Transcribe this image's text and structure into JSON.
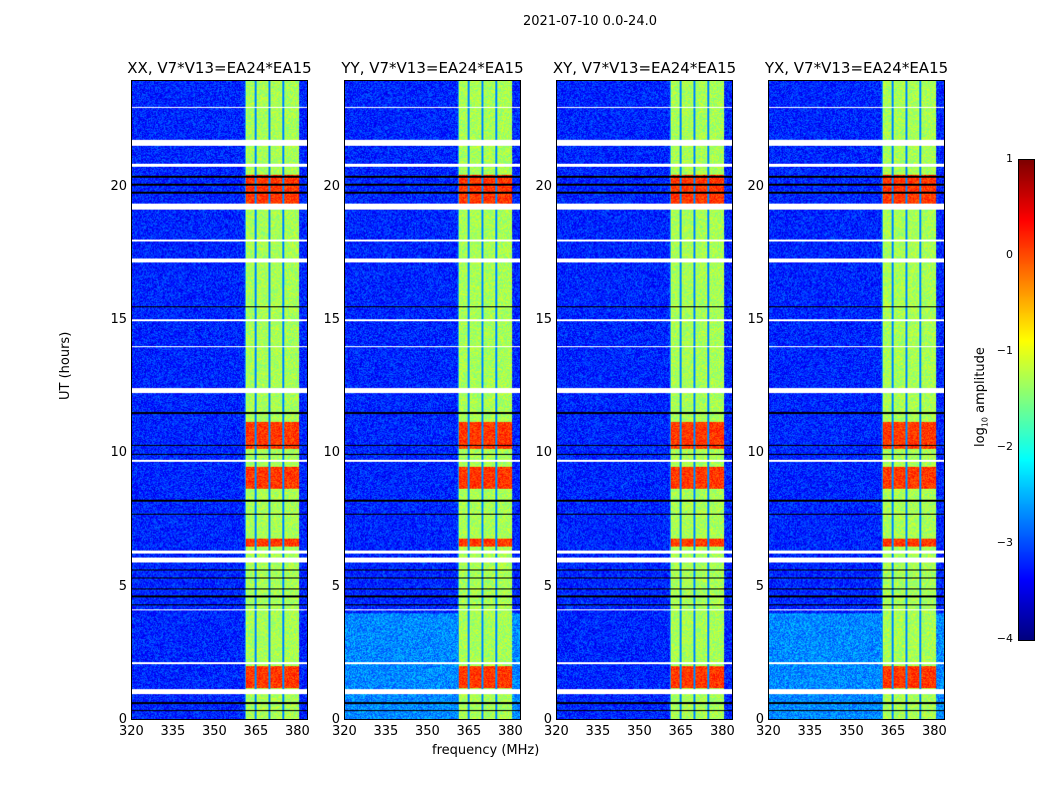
{
  "suptitle": "2021-07-10 0.0-24.0",
  "chart_data": {
    "type": "heatmap",
    "panels": [
      {
        "title": "XX, V7*V13=EA24*EA15"
      },
      {
        "title": "YY, V7*V13=EA24*EA15"
      },
      {
        "title": "XY, V7*V13=EA24*EA15"
      },
      {
        "title": "YX, V7*V13=EA24*EA15"
      }
    ],
    "xlabel": "frequency (MHz)",
    "ylabel": "UT (hours)",
    "xlim": [
      320,
      384
    ],
    "ylim": [
      0,
      24
    ],
    "xticks": [
      "320",
      "335",
      "350",
      "365",
      "380"
    ],
    "yticks": [
      "0",
      "5",
      "10",
      "15",
      "20"
    ],
    "colorbar": {
      "label": "log10 amplitude",
      "label_main": "log",
      "label_sub": "10",
      "label_rest": " amplitude",
      "range": [
        -4,
        1
      ],
      "ticks": [
        "1",
        "0",
        "−1",
        "−2",
        "−3",
        "−4"
      ],
      "colormap": "jet"
    },
    "background_level": -3.2,
    "band_mhz": [
      361,
      381
    ],
    "band_gaps_mhz": [
      365,
      370,
      375
    ],
    "band_level": -1.3,
    "hot_hours": [
      [
        1.2,
        2.0
      ],
      [
        6.5,
        6.8
      ],
      [
        8.7,
        9.5
      ],
      [
        10.2,
        11.2
      ],
      [
        19.3,
        20.5
      ]
    ],
    "hot_level": 0.1,
    "flagged_white_hours": [
      [
        0.95,
        1.15
      ],
      [
        2.1,
        2.15
      ],
      [
        4.1,
        4.15
      ],
      [
        5.9,
        6.1
      ],
      [
        6.25,
        6.35
      ],
      [
        9.7,
        9.75
      ],
      [
        12.3,
        12.45
      ],
      [
        14.0,
        14.05
      ],
      [
        15.0,
        15.05
      ],
      [
        17.2,
        17.35
      ],
      [
        18.0,
        18.05
      ],
      [
        19.2,
        19.4
      ],
      [
        20.8,
        20.9
      ],
      [
        21.6,
        21.8
      ],
      [
        23.0,
        23.05
      ]
    ],
    "flagged_black_hours": [
      [
        0.3,
        0.35
      ],
      [
        0.6,
        0.65
      ],
      [
        4.3,
        4.35
      ],
      [
        4.6,
        4.65
      ],
      [
        4.9,
        4.95
      ],
      [
        5.3,
        5.35
      ],
      [
        5.6,
        5.65
      ],
      [
        7.7,
        7.75
      ],
      [
        8.2,
        8.25
      ],
      [
        9.95,
        10.0
      ],
      [
        10.3,
        10.35
      ],
      [
        11.5,
        11.55
      ],
      [
        15.5,
        15.55
      ],
      [
        19.8,
        19.85
      ],
      [
        20.1,
        20.15
      ],
      [
        20.4,
        20.45
      ]
    ]
  }
}
